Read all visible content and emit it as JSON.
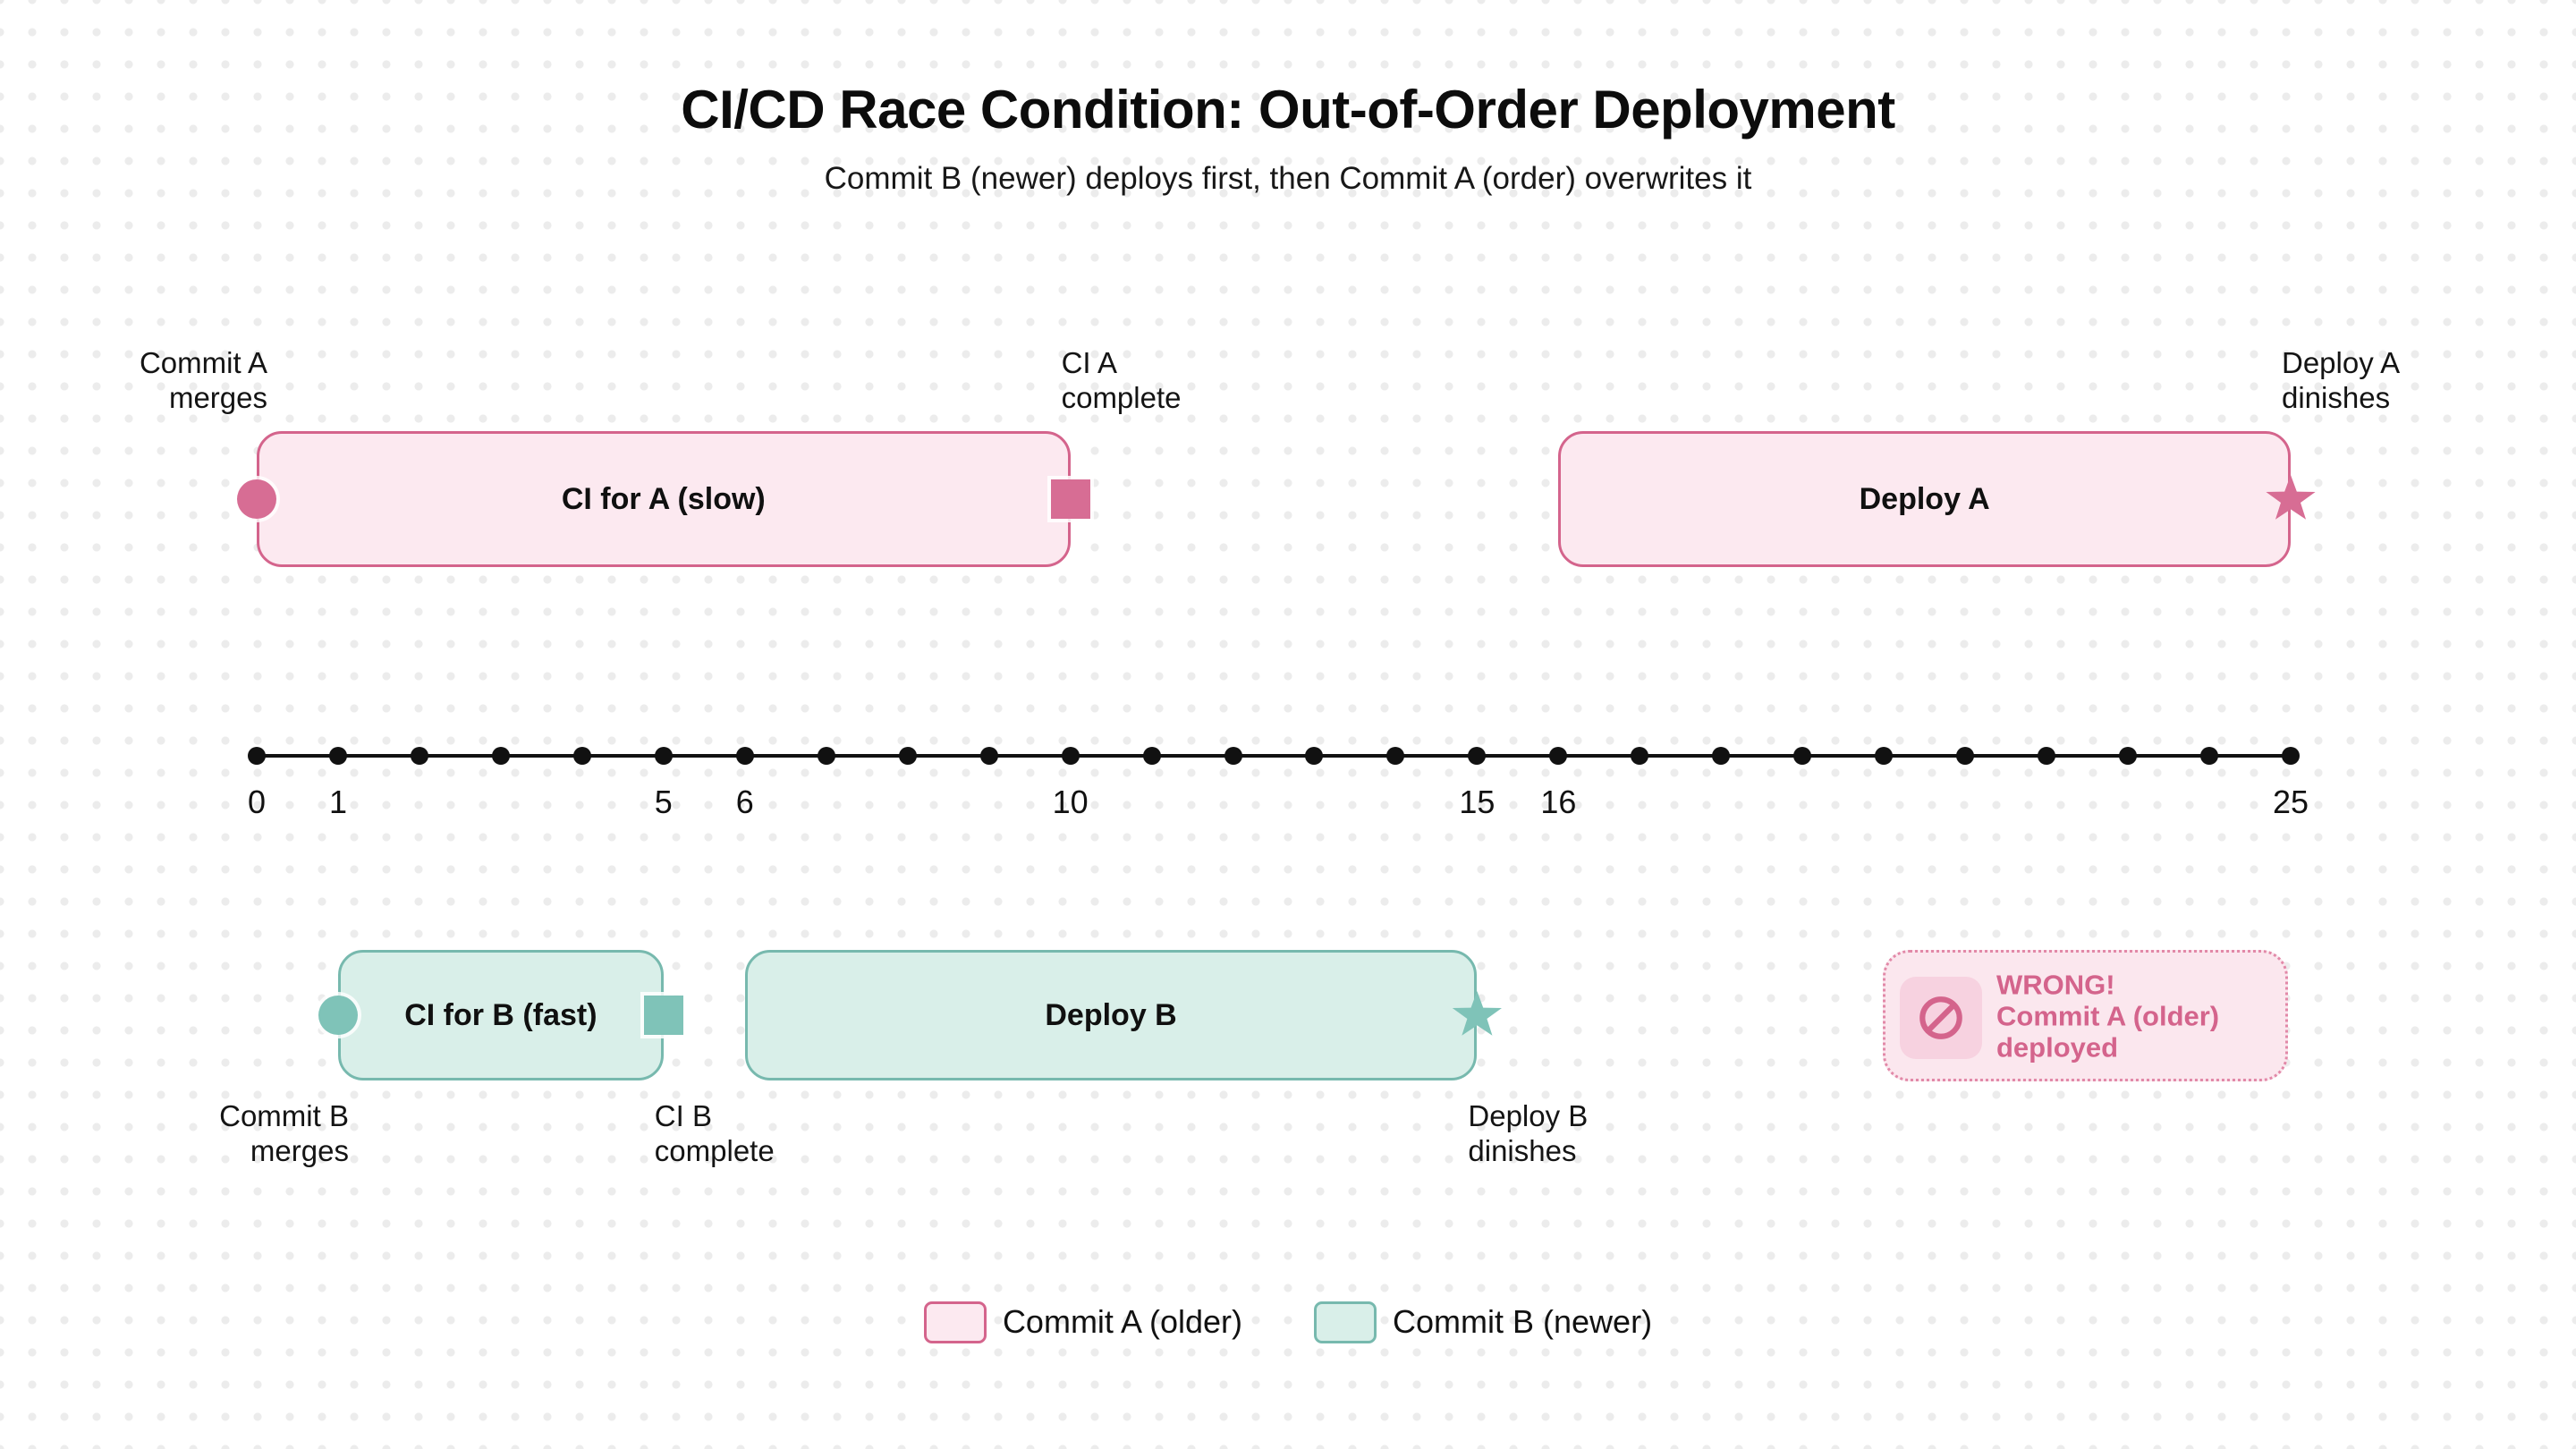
{
  "header": {
    "title": "CI/CD Race Condition: Out-of-Order Deployment",
    "subtitle": "Commit B (newer) deploys first, then Commit A (order) overwrites it"
  },
  "colors": {
    "pink_fill": "#fce9f0",
    "pink_border": "#d4648c",
    "pink_marker": "#d76d94",
    "teal_fill": "#d9efe9",
    "teal_border": "#77b9ae",
    "teal_marker": "#7fc3b8",
    "ink": "#111111",
    "wrong_pink": "#d4648c",
    "wrong_fill": "#fbe7ee",
    "wrong_icon_bg": "#f7d2e0",
    "grid_dot": "#ececec"
  },
  "chart_data": {
    "type": "bar",
    "title": "CI/CD Race Condition: Out-of-Order Deployment",
    "xlabel": "time",
    "axis_range": [
      0,
      25
    ],
    "labeled_ticks": [
      0,
      1,
      5,
      6,
      10,
      15,
      16,
      25
    ],
    "series": [
      {
        "name": "Commit A (older)",
        "bars": [
          {
            "label": "CI for A (slow)",
            "start": 0,
            "end": 10
          },
          {
            "label": "Deploy A",
            "start": 16,
            "end": 25
          }
        ]
      },
      {
        "name": "Commit B (newer)",
        "bars": [
          {
            "label": "CI for B (fast)",
            "start": 1,
            "end": 5
          },
          {
            "label": "Deploy B",
            "start": 6,
            "end": 15
          }
        ]
      }
    ]
  },
  "timeline": {
    "axis": {
      "min": 0,
      "max": 25,
      "tick_step": 1,
      "labeled_ticks": [
        0,
        1,
        5,
        6,
        10,
        15,
        16,
        25
      ]
    },
    "bars": [
      {
        "id": "ci-for-a",
        "lane": "A",
        "theme": "pink",
        "label": "CI for A (slow)",
        "start": 0,
        "end": 10,
        "start_marker": "circle",
        "end_marker": "square"
      },
      {
        "id": "deploy-a",
        "lane": "A",
        "theme": "pink",
        "label": "Deploy A",
        "start": 16,
        "end": 25,
        "end_marker": "star"
      },
      {
        "id": "ci-for-b",
        "lane": "B",
        "theme": "teal",
        "label": "CI for B (fast)",
        "start": 1,
        "end": 5,
        "start_marker": "circle",
        "end_marker": "square"
      },
      {
        "id": "deploy-b",
        "lane": "B",
        "theme": "teal",
        "label": "Deploy B",
        "start": 6,
        "end": 15,
        "end_marker": "star"
      }
    ],
    "annotations": [
      {
        "id": "commit-a-merges",
        "lines": [
          "Commit A",
          "merges"
        ],
        "t": 0,
        "row": "above",
        "align": "right"
      },
      {
        "id": "ci-a-complete",
        "lines": [
          "CI A",
          "complete"
        ],
        "t": 10,
        "row": "above",
        "align": "left"
      },
      {
        "id": "deploy-a-dinishes",
        "lines": [
          "Deploy A",
          "dinishes"
        ],
        "t": 25,
        "row": "above",
        "align": "left"
      },
      {
        "id": "commit-b-merges",
        "lines": [
          "Commit B",
          "merges"
        ],
        "t": 1,
        "row": "below",
        "align": "right"
      },
      {
        "id": "ci-b-complete",
        "lines": [
          "CI B",
          "complete"
        ],
        "t": 5,
        "row": "below",
        "align": "left"
      },
      {
        "id": "deploy-b-dinishes",
        "lines": [
          "Deploy B",
          "dinishes"
        ],
        "t": 15,
        "row": "below",
        "align": "left"
      }
    ]
  },
  "wrong_badge": {
    "icon": "no-entry-icon",
    "lines": {
      "0": "WRONG!",
      "1": "Commit A (older)",
      "2": "deployed"
    }
  },
  "legend": [
    {
      "id": "commit-a",
      "theme": "pink",
      "label": "Commit A (older)"
    },
    {
      "id": "commit-b",
      "theme": "teal",
      "label": "Commit B (newer)"
    }
  ]
}
